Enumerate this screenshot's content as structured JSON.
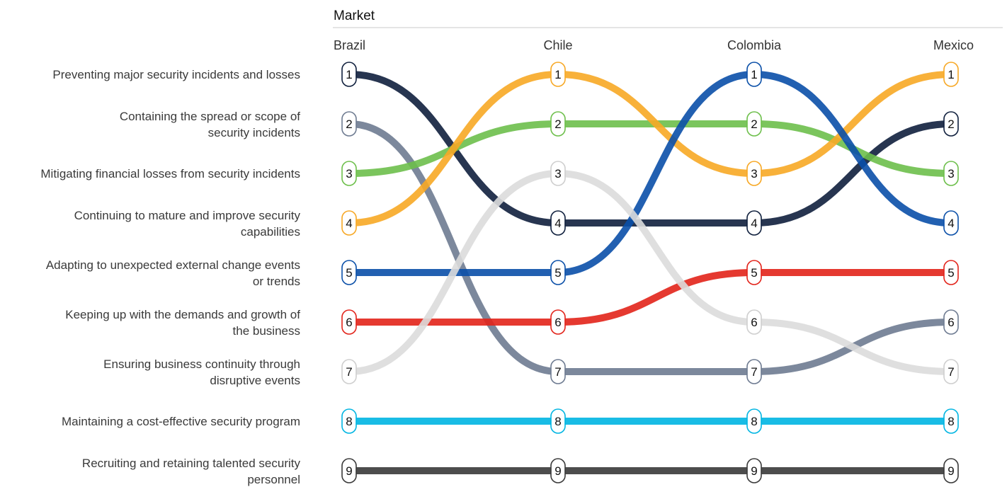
{
  "chart_data": {
    "type": "bump",
    "title": "Market",
    "columns": [
      "Brazil",
      "Chile",
      "Colombia",
      "Mexico"
    ],
    "row_labels": [
      [
        "Preventing major security incidents and losses"
      ],
      [
        "Containing the spread or scope of",
        "security incidents"
      ],
      [
        "Mitigating financial losses from security incidents"
      ],
      [
        "Continuing to mature and improve security",
        "capabilities"
      ],
      [
        "Adapting to unexpected external change events",
        "or trends"
      ],
      [
        "Keeping up with the demands and growth of",
        "the business"
      ],
      [
        "Ensuring business continuity through",
        "disruptive events"
      ],
      [
        "Maintaining a cost-effective security program"
      ],
      [
        "Recruiting and retaining talented security",
        "personnel"
      ]
    ],
    "series": [
      {
        "color": "#0f1f3d",
        "ranks": [
          1,
          4,
          4,
          2
        ]
      },
      {
        "color": "#6e7b91",
        "ranks": [
          2,
          7,
          7,
          6
        ]
      },
      {
        "color": "#6dbf4b",
        "ranks": [
          3,
          2,
          2,
          3
        ]
      },
      {
        "color": "#f7a825",
        "ranks": [
          4,
          1,
          3,
          1
        ]
      },
      {
        "color": "#0a4fa8",
        "ranks": [
          5,
          5,
          1,
          4
        ]
      },
      {
        "color": "#e2231a",
        "ranks": [
          6,
          6,
          5,
          5
        ]
      },
      {
        "color": "#dcdcdc",
        "ranks": [
          7,
          3,
          6,
          7
        ]
      },
      {
        "color": "#00b5e2",
        "ranks": [
          8,
          8,
          8,
          8
        ]
      },
      {
        "color": "#3a3a3a",
        "ranks": [
          9,
          9,
          9,
          9
        ]
      }
    ]
  }
}
